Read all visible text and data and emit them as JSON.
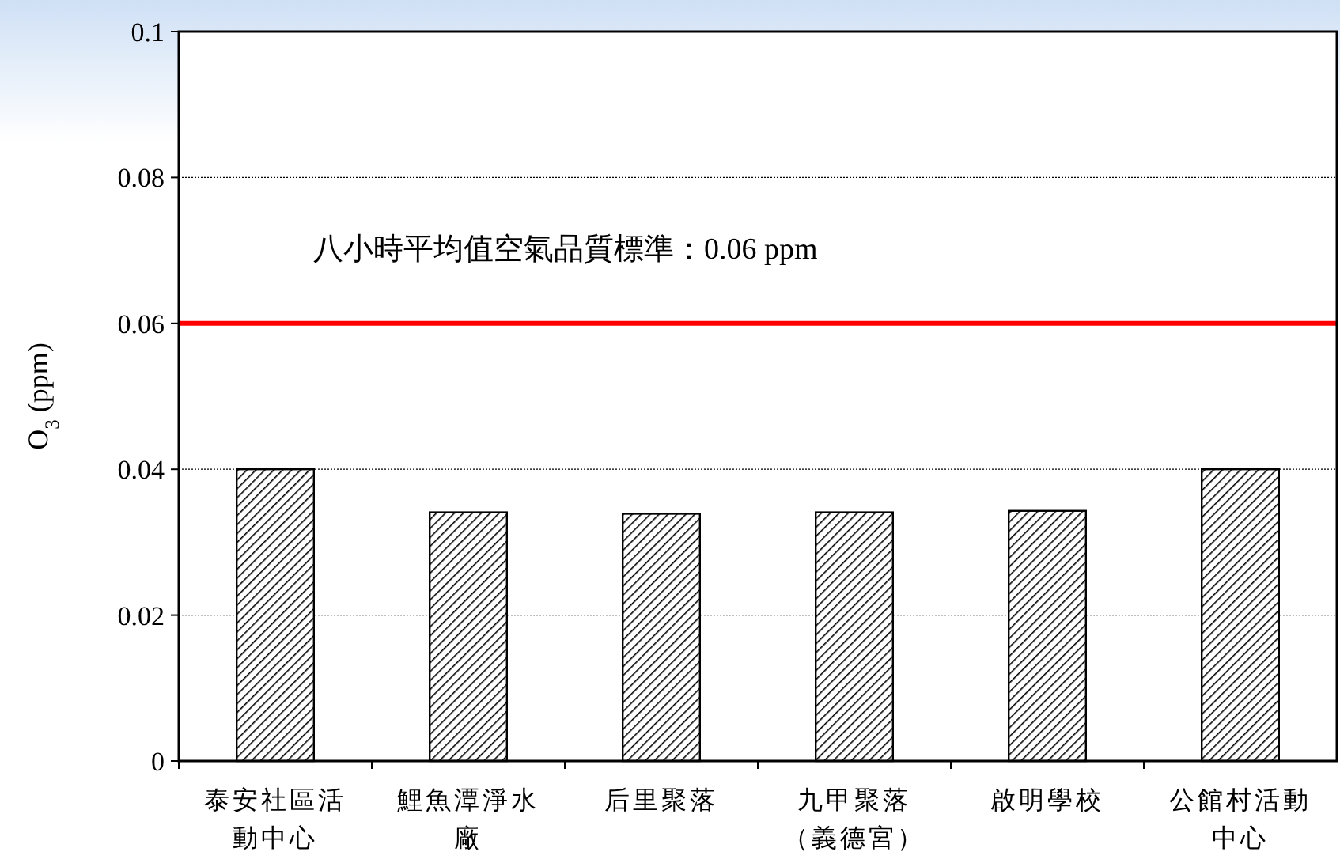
{
  "chart_data": {
    "type": "bar",
    "ylabel": "O$_{3}$ (ppm)",
    "categories": [
      "泰安社區活動中心",
      "鯉魚潭淨水廠",
      "后里聚落",
      "九甲聚落（義德宮）",
      "啟明學校",
      "公館村活動中心"
    ],
    "values": [
      0.04,
      0.0341,
      0.0339,
      0.0341,
      0.0343,
      0.04
    ],
    "color": "#000000",
    "ylim": [
      0,
      0.1
    ],
    "yticks": [
      0,
      0.02,
      0.04,
      0.06,
      0.08,
      0.1
    ],
    "grid": "y",
    "ref_lines": [
      {
        "axis": "y",
        "value": 0.06,
        "label": "八小時平均值空氣品質標準：0.06 ppm",
        "color": "#ff0000"
      }
    ]
  }
}
